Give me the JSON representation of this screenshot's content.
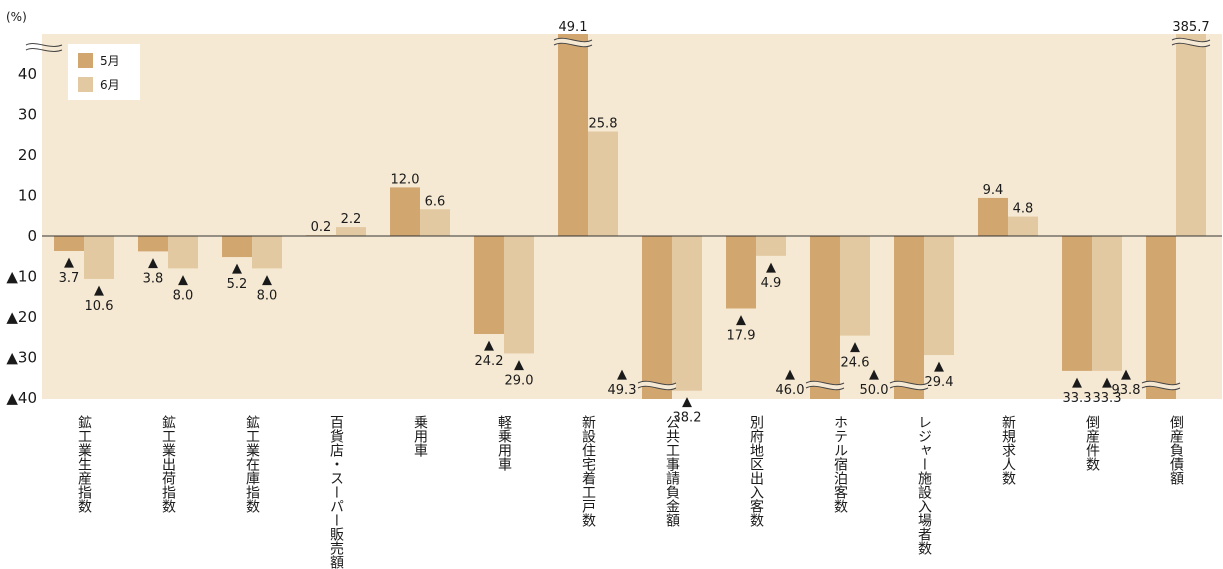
{
  "chart_data": {
    "type": "bar",
    "unit_label": "(%)",
    "ylim": [
      -40,
      40
    ],
    "y_ticks": [
      {
        "value": 40,
        "label": "40"
      },
      {
        "value": 30,
        "label": "30"
      },
      {
        "value": 20,
        "label": "20"
      },
      {
        "value": 10,
        "label": "10"
      },
      {
        "value": 0,
        "label": "0"
      },
      {
        "value": -10,
        "label": "▲10"
      },
      {
        "value": -20,
        "label": "▲20"
      },
      {
        "value": -30,
        "label": "▲30"
      },
      {
        "value": -40,
        "label": "▲40"
      }
    ],
    "categories": [
      "鉱工業生産指数",
      "鉱工業出荷指数",
      "鉱工業在庫指数",
      "百貨店・スーパー販売額",
      "乗用車",
      "軽乗用車",
      "新設住宅着工戸数",
      "公共工事請負金額",
      "別府地区出入客数",
      "ホテル宿泊客数",
      "レジャー施設入場者数",
      "新規求人数",
      "倒産件数",
      "倒産負債額"
    ],
    "series": [
      {
        "name": "5月",
        "color": "#d1a66f",
        "values": [
          -3.7,
          -3.8,
          -5.2,
          0.2,
          12.0,
          -24.2,
          49.1,
          -49.3,
          -17.9,
          -46.0,
          -50.0,
          9.4,
          -33.3,
          -93.8
        ],
        "labels": [
          "3.7",
          "3.8",
          "5.2",
          "0.2",
          "12.0",
          "24.2",
          "49.1",
          "49.3",
          "17.9",
          "46.0",
          "50.0",
          "9.4",
          "33.3",
          "93.8"
        ]
      },
      {
        "name": "6月",
        "color": "#e3c9a1",
        "values": [
          -10.6,
          -8.0,
          -8.0,
          2.2,
          6.6,
          -29.0,
          25.8,
          -38.2,
          -4.9,
          -24.6,
          -29.4,
          4.8,
          -33.3,
          385.7
        ],
        "labels": [
          "10.6",
          "8.0",
          "8.0",
          "2.2",
          "6.6",
          "29.0",
          "25.8",
          "38.2",
          "4.9",
          "24.6",
          "29.4",
          "4.8",
          "33.3",
          "385.7"
        ]
      }
    ],
    "axis_break": true,
    "legend_position": "top-left",
    "grid": false
  }
}
